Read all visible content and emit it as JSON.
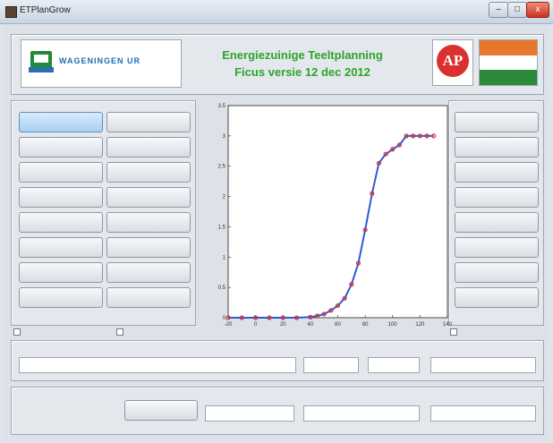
{
  "window": {
    "title": "ETPlanGrow",
    "controls": {
      "minimize": "–",
      "maximize": "□",
      "close": "x"
    }
  },
  "header": {
    "logo_left": "WAGENINGEN UR",
    "logo_left_sub": "",
    "title_line1": "Energiezuinige Teeltplanning",
    "title_line2": "Ficus versie 12 dec 2012",
    "logo_right_1": "AP",
    "logo_right_2": ""
  },
  "left_buttons": [
    {
      "label": ""
    },
    {
      "label": ""
    },
    {
      "label": ""
    },
    {
      "label": ""
    },
    {
      "label": ""
    },
    {
      "label": ""
    },
    {
      "label": ""
    },
    {
      "label": ""
    },
    {
      "label": ""
    },
    {
      "label": ""
    },
    {
      "label": ""
    },
    {
      "label": ""
    },
    {
      "label": ""
    },
    {
      "label": ""
    },
    {
      "label": ""
    },
    {
      "label": ""
    }
  ],
  "right_buttons": [
    {
      "label": ""
    },
    {
      "label": ""
    },
    {
      "label": ""
    },
    {
      "label": ""
    },
    {
      "label": ""
    },
    {
      "label": ""
    },
    {
      "label": ""
    },
    {
      "label": ""
    }
  ],
  "checkboxes": {
    "left": "",
    "middle": "",
    "right": ""
  },
  "settings_row": {
    "label1": "",
    "value1": "",
    "label2": "",
    "value2": "",
    "label3": "",
    "value3": "",
    "label4": "",
    "value4": ""
  },
  "bottom_row": {
    "info_text": "",
    "button": "",
    "label1": "",
    "value1": "",
    "label2": "",
    "value2": "",
    "label3": "",
    "value3": ""
  },
  "colors": {
    "line": "#2a5bd7",
    "markers": "#e03030"
  },
  "chart_data": {
    "type": "line",
    "title": "",
    "xlabel": "",
    "ylabel": "",
    "xlim": [
      -20,
      140
    ],
    "ylim": [
      0,
      3.5
    ],
    "xticks": [
      "-20",
      "0",
      "20",
      "40",
      "60",
      "80",
      "100",
      "120",
      "140"
    ],
    "yticks": [
      "0",
      "0.5",
      "1",
      "1.5",
      "2",
      "2.5",
      "3",
      "3.5"
    ],
    "series": [
      {
        "name": "",
        "x": [
          -20,
          -10,
          0,
          10,
          20,
          30,
          40,
          45,
          50,
          55,
          60,
          65,
          70,
          75,
          80,
          85,
          90,
          95,
          100,
          105,
          110,
          115,
          120,
          125,
          130
        ],
        "y": [
          0,
          0,
          0,
          0,
          0,
          0,
          0.01,
          0.03,
          0.06,
          0.12,
          0.2,
          0.32,
          0.55,
          0.9,
          1.45,
          2.05,
          2.55,
          2.7,
          2.78,
          2.85,
          3.0,
          3.0,
          3.0,
          3.0,
          3.0
        ]
      }
    ]
  }
}
